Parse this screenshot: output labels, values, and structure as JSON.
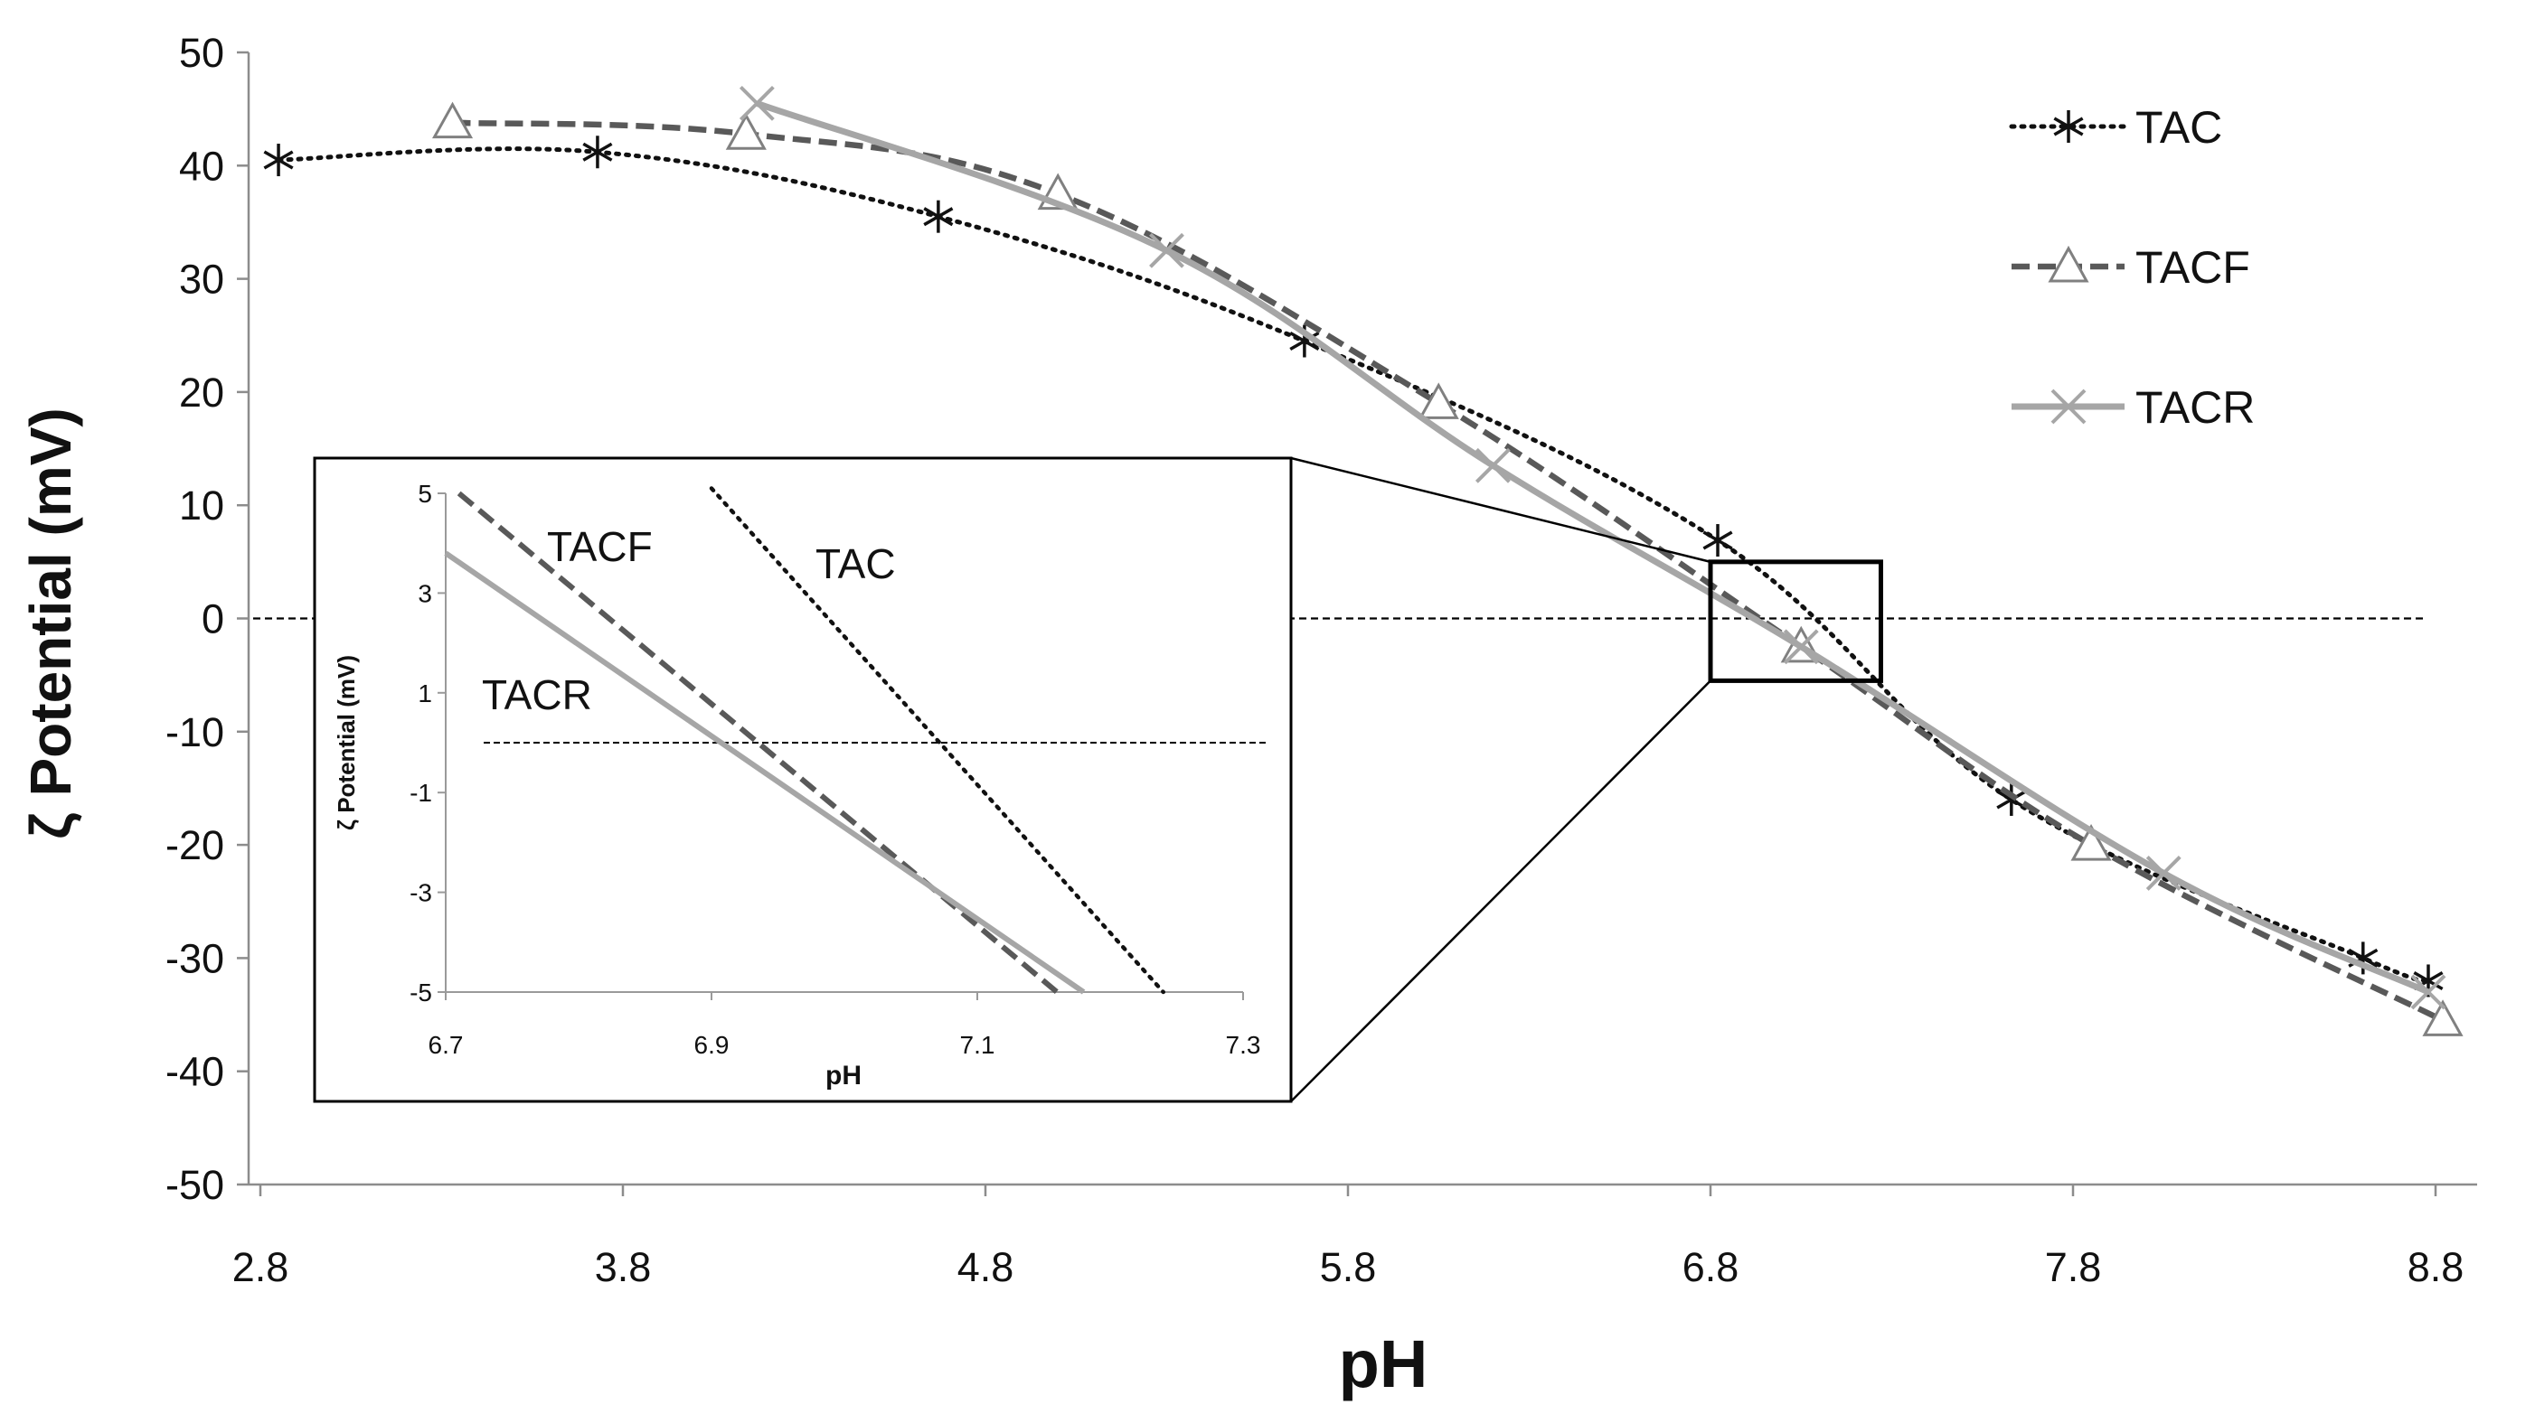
{
  "chart_data": [
    {
      "type": "line",
      "xlabel": "pH",
      "ylabel": "ζ Potential (mV)",
      "xlim": [
        2.8,
        8.8
      ],
      "ylim": [
        -50,
        50
      ],
      "x_ticks": [
        "2.8",
        "3.8",
        "4.8",
        "5.8",
        "6.8",
        "7.8",
        "8.8"
      ],
      "y_ticks": [
        "50",
        "40",
        "30",
        "20",
        "10",
        "0",
        "-10",
        "-20",
        "-30",
        "-40",
        "-50"
      ],
      "zero_line": true,
      "legend_position": "top-right",
      "series": [
        {
          "name": "TAC",
          "style": "dotted",
          "marker": "asterisk",
          "color": "#111111",
          "points": [
            [
              2.85,
              40.5
            ],
            [
              3.73,
              41.2
            ],
            [
              4.67,
              35.5
            ],
            [
              5.68,
              24.5
            ],
            [
              6.82,
              6.9
            ],
            [
              7.63,
              -16
            ],
            [
              8.6,
              -30
            ],
            [
              8.78,
              -32
            ]
          ]
        },
        {
          "name": "TACF",
          "style": "dashed",
          "marker": "triangle",
          "color": "#595959",
          "points": [
            [
              3.33,
              43.8
            ],
            [
              4.14,
              42.8
            ],
            [
              5.0,
              37.5
            ],
            [
              6.05,
              19
            ],
            [
              7.05,
              -2.5
            ],
            [
              7.85,
              -20
            ],
            [
              8.82,
              -35.5
            ]
          ]
        },
        {
          "name": "TACR",
          "style": "solid",
          "marker": "x",
          "color": "#a6a6a6",
          "points": [
            [
              4.17,
              45.5
            ],
            [
              5.3,
              32.5
            ],
            [
              6.2,
              13.5
            ],
            [
              7.05,
              -2.5
            ],
            [
              8.05,
              -22.5
            ],
            [
              8.78,
              -33
            ]
          ]
        }
      ],
      "zoom_box": {
        "x": [
          6.8,
          7.27
        ],
        "y": [
          -5.5,
          5
        ]
      }
    },
    {
      "type": "line",
      "title": "",
      "xlabel": "pH",
      "ylabel": "ζ Potential (mV)",
      "xlim": [
        6.7,
        7.3
      ],
      "ylim": [
        -5,
        5
      ],
      "x_ticks": [
        "6.7",
        "6.9",
        "7.1",
        "7.3"
      ],
      "y_ticks": [
        "5",
        "3",
        "1",
        "-1",
        "-3",
        "-5"
      ],
      "zero_line": true,
      "series": [
        {
          "name": "TACF",
          "style": "dashed",
          "color": "#595959",
          "points": [
            [
              6.71,
              5.0
            ],
            [
              7.16,
              -5.0
            ]
          ]
        },
        {
          "name": "TACR",
          "style": "solid",
          "color": "#a6a6a6",
          "points": [
            [
              6.7,
              3.8
            ],
            [
              7.18,
              -5.0
            ]
          ]
        },
        {
          "name": "TAC",
          "style": "dotted",
          "color": "#111111",
          "points": [
            [
              6.9,
              5.1
            ],
            [
              7.24,
              -5.0
            ]
          ]
        }
      ],
      "series_labels": {
        "TACF": "TACF",
        "TAC": "TAC",
        "TACR": "TACR"
      }
    }
  ]
}
